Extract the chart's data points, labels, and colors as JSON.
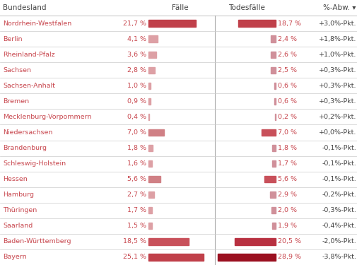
{
  "bundeslaender": [
    "Nordrhein-Westfalen",
    "Berlin",
    "Rheinland-Pfalz",
    "Sachsen",
    "Sachsen-Anhalt",
    "Bremen",
    "Mecklenburg-Vorpommern",
    "Niedersachsen",
    "Brandenburg",
    "Schleswig-Holstein",
    "Hessen",
    "Hamburg",
    "Thüringen",
    "Saarland",
    "Baden-Württemberg",
    "Bayern"
  ],
  "faelle": [
    21.7,
    4.1,
    3.6,
    2.8,
    1.0,
    0.9,
    0.4,
    7.0,
    1.8,
    1.6,
    5.6,
    2.7,
    1.7,
    1.5,
    18.5,
    25.1
  ],
  "todesfaelle": [
    18.7,
    2.4,
    2.6,
    2.5,
    0.6,
    0.6,
    0.2,
    7.0,
    1.8,
    1.7,
    5.6,
    2.9,
    2.0,
    1.9,
    20.5,
    28.9
  ],
  "abweichung": [
    "+3,0%-Pkt.",
    "+1,8%-Pkt.",
    "+1,0%-Pkt.",
    "+0,3%-Pkt.",
    "+0,3%-Pkt.",
    "+0,3%-Pkt.",
    "+0,2%-Pkt.",
    "+0,0%-Pkt.",
    "-0,1%-Pkt.",
    "-0,1%-Pkt.",
    "-0,1%-Pkt.",
    "-0,2%-Pkt.",
    "-0,3%-Pkt.",
    "-0,4%-Pkt.",
    "-2,0%-Pkt.",
    "-3,8%-Pkt."
  ],
  "faelle_text": [
    "21,7 %",
    "4,1 %",
    "3,6 %",
    "2,8 %",
    "1,0 %",
    "0,9 %",
    "0,4 %",
    "7,0 %",
    "1,8 %",
    "1,6 %",
    "5,6 %",
    "2,7 %",
    "1,7 %",
    "1,5 %",
    "18,5 %",
    "25,1 %"
  ],
  "todesfaelle_text": [
    "18,7 %",
    "2,4 %",
    "2,6 %",
    "2,5 %",
    "0,6 %",
    "0,6 %",
    "0,2 %",
    "7,0 %",
    "1,8 %",
    "1,7 %",
    "5,6 %",
    "2,9 %",
    "2,0 %",
    "1,9 %",
    "20,5 %",
    "28,9 %"
  ],
  "col_headers": [
    "Bundesland",
    "Fälle",
    "Todesfälle",
    "%-Abw. ▾"
  ],
  "text_color_red": "#c8474e",
  "text_color_dark": "#444444",
  "header_color": "#444444",
  "bg_color": "#ffffff",
  "grid_color": "#cccccc",
  "divider_color": "#aaaaaa",
  "max_bar": 29.0,
  "faelle_bar_colors": [
    "#c0404a",
    "#dda0a5",
    "#dda0a5",
    "#dda0a5",
    "#dda0a5",
    "#dda0a5",
    "#dda0a5",
    "#d08085",
    "#dda0a5",
    "#dda0a5",
    "#d08085",
    "#dda0a5",
    "#dda0a5",
    "#dda0a5",
    "#c8505a",
    "#c0404a"
  ],
  "todesfaelle_bar_colors": [
    "#c0404a",
    "#d0909a",
    "#d0909a",
    "#d0909a",
    "#d0909a",
    "#d0909a",
    "#d0909a",
    "#c8505a",
    "#d0909a",
    "#d0909a",
    "#c8505a",
    "#d0909a",
    "#d0909a",
    "#d0909a",
    "#b83040",
    "#9b1020"
  ]
}
